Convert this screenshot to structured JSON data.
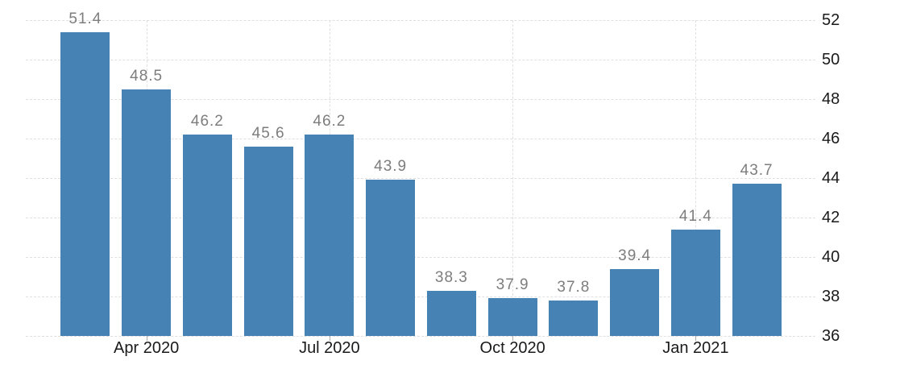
{
  "chart": {
    "bar_color": "#4682b4",
    "value_label_color": "#7d7d7d",
    "axis_label_color": "#1a1a1a",
    "gridline_color": "#e0e0e0",
    "background_color": "#ffffff"
  },
  "chart_data": {
    "type": "bar",
    "title": "",
    "xlabel": "",
    "ylabel": "",
    "values": [
      51.4,
      48.5,
      46.2,
      45.6,
      46.2,
      43.9,
      38.3,
      37.9,
      37.8,
      39.4,
      41.4,
      43.7
    ],
    "value_labels": [
      "51.4",
      "48.5",
      "46.2",
      "45.6",
      "46.2",
      "43.9",
      "38.3",
      "37.9",
      "37.8",
      "39.4",
      "41.4",
      "43.7"
    ],
    "x_tick_labels": [
      "Apr 2020",
      "Jul 2020",
      "Oct 2020",
      "Jan 2021"
    ],
    "x_tick_indices": [
      1,
      4,
      7,
      10
    ],
    "y_ticks": [
      36,
      38,
      40,
      42,
      44,
      46,
      48,
      50,
      52
    ],
    "y_tick_labels": [
      "36",
      "38",
      "40",
      "42",
      "44",
      "46",
      "48",
      "50",
      "52"
    ],
    "ylim": [
      36,
      52
    ],
    "grid": true,
    "legend_position": "none",
    "y_axis_side": "right"
  }
}
